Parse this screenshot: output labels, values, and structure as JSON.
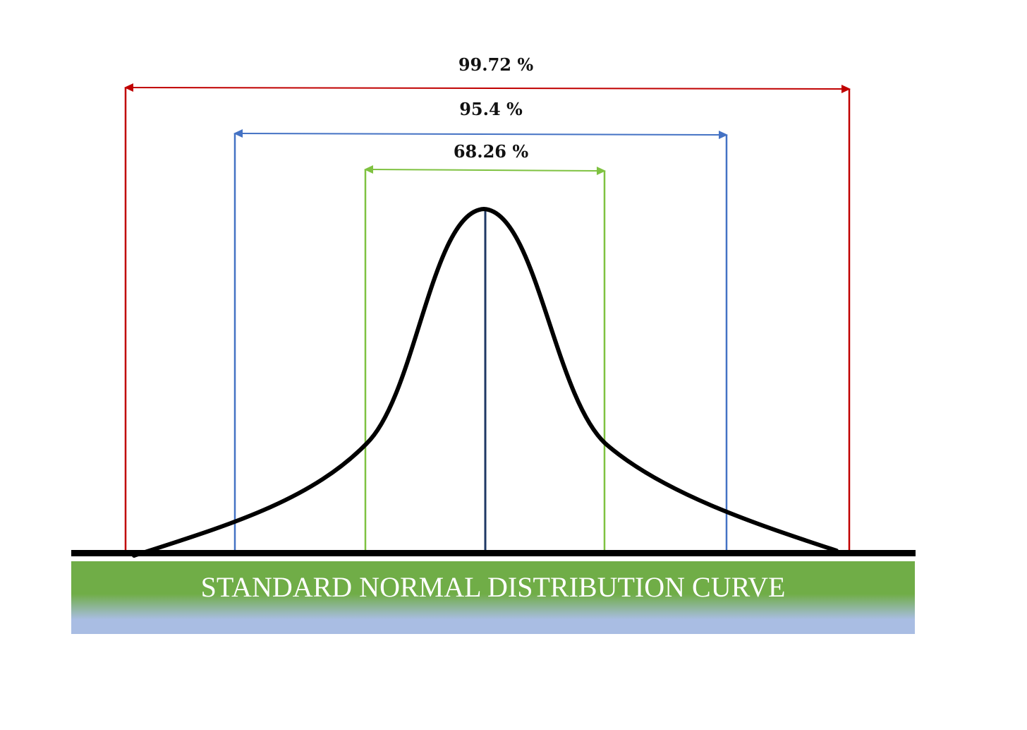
{
  "intervals": [
    {
      "label": "99.72 %",
      "color": "#c00000"
    },
    {
      "label": "95.4 %",
      "color": "#4472c4"
    },
    {
      "label": "68.26 %",
      "color": "#7fc241"
    }
  ],
  "center_line_color": "#1f3864",
  "curve_color": "#000000",
  "banner": {
    "title": "STANDARD NORMAL DISTRIBUTION CURVE",
    "gradient_top": "#70ad47",
    "gradient_bottom": "#a9bde3"
  }
}
